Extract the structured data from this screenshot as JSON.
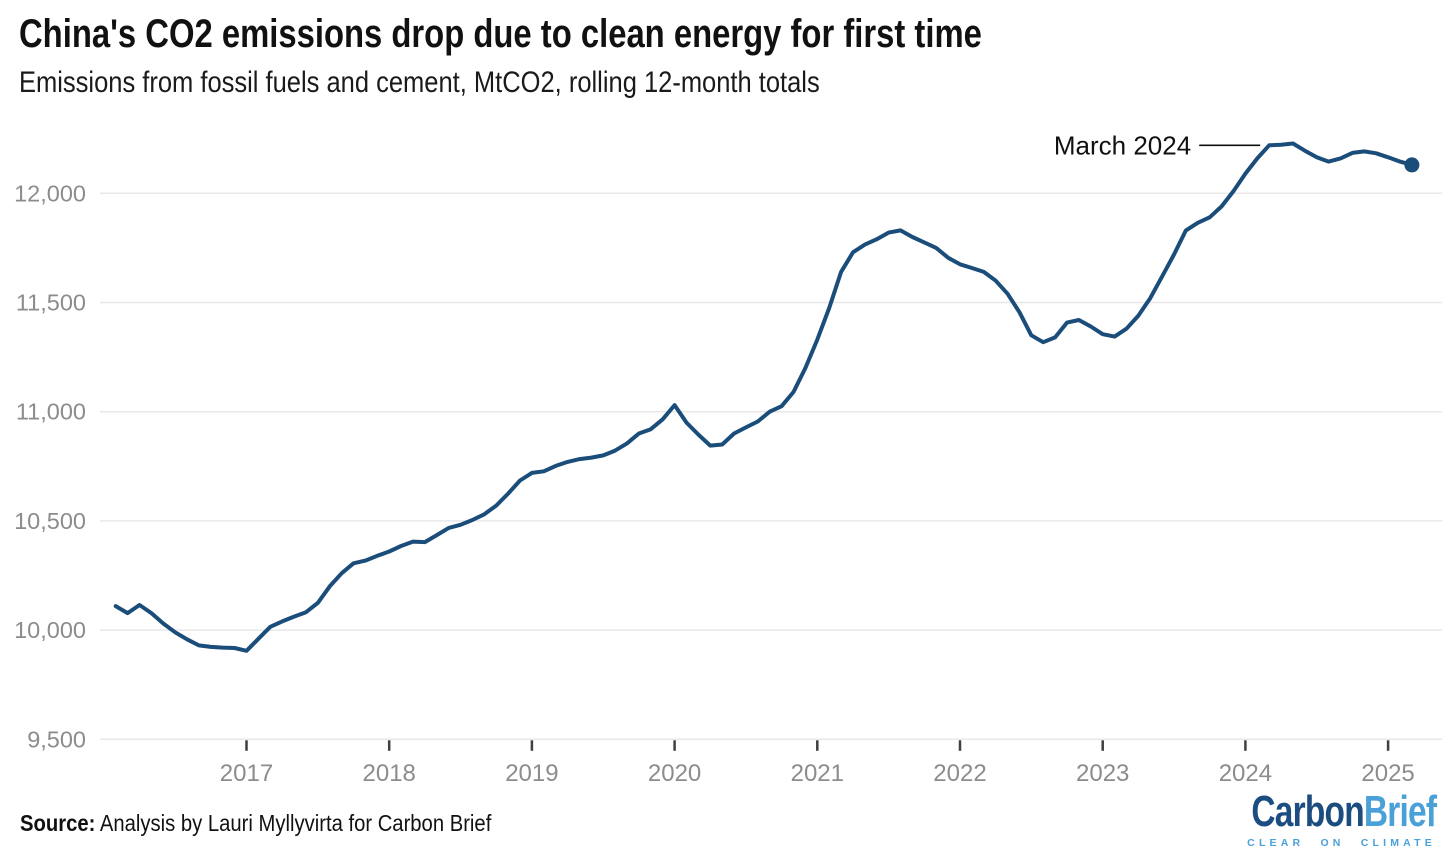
{
  "header": {
    "title": "China's CO2 emissions drop due to clean energy for first time",
    "subtitle": "Emissions from fossil fuels and cement, MtCO2, rolling 12-month totals"
  },
  "footer": {
    "source_label": "Source:",
    "source_text": "Analysis by Lauri Myllyvirta for Carbon Brief",
    "logo": {
      "part1": "Carbon",
      "part2": "Brief",
      "tagline": "CLEAR ON CLIMATE",
      "dark_color": "#1c4d80",
      "light_color": "#4aa0d8"
    }
  },
  "chart_data": {
    "type": "line",
    "title": "China's CO2 emissions drop due to clean energy for first time",
    "subtitle": "Emissions from fossil fuels and cement, MtCO2, rolling 12-month totals",
    "xlabel": "",
    "ylabel": "MtCO2, rolling 12-month totals",
    "grid": "horizontal",
    "legend": "none",
    "ylim": [
      9500,
      12300
    ],
    "xlim": [
      2016.0,
      2025.45
    ],
    "x_ticks": [
      2017,
      2018,
      2019,
      2020,
      2021,
      2022,
      2023,
      2024,
      2025
    ],
    "y_ticks": [
      {
        "value": 12000,
        "label": "12,000"
      },
      {
        "value": 11500,
        "label": "11,500"
      },
      {
        "value": 11000,
        "label": "11,000"
      },
      {
        "value": 10500,
        "label": "10,500"
      },
      {
        "value": 10000,
        "label": "10,000"
      },
      {
        "value": 9500,
        "label": "9,500"
      }
    ],
    "annotation": {
      "label": "March 2024",
      "month": "2024-03"
    },
    "endpoint_dot": true,
    "series": [
      {
        "name": "China CO2 emissions from fossil fuels and cement (MtCO2, rolling 12-month totals)",
        "frequency": "monthly",
        "start_month": "2016-02",
        "end_month": "2025-03",
        "values": [
          10110,
          10078,
          10115,
          10078,
          10030,
          9990,
          9958,
          9930,
          9923,
          9920,
          9918,
          9905,
          9960,
          10015,
          10040,
          10062,
          10082,
          10125,
          10200,
          10260,
          10306,
          10318,
          10340,
          10360,
          10385,
          10405,
          10403,
          10435,
          10468,
          10482,
          10504,
          10530,
          10570,
          10625,
          10685,
          10720,
          10727,
          10752,
          10770,
          10783,
          10790,
          10800,
          10822,
          10855,
          10900,
          10920,
          10965,
          11030,
          10950,
          10895,
          10845,
          10850,
          10900,
          10928,
          10955,
          11000,
          11025,
          11090,
          11200,
          11330,
          11475,
          11640,
          11730,
          11765,
          11790,
          11820,
          11830,
          11800,
          11775,
          11750,
          11705,
          11675,
          11658,
          11640,
          11600,
          11540,
          11455,
          11350,
          11318,
          11340,
          11408,
          11420,
          11390,
          11355,
          11344,
          11380,
          11440,
          11520,
          11620,
          11720,
          11830,
          11865,
          11890,
          11940,
          12010,
          12090,
          12160,
          12220,
          12222,
          12228,
          12195,
          12165,
          12145,
          12160,
          12185,
          12192,
          12183,
          12165,
          12145,
          12130
        ]
      }
    ],
    "colors": {
      "line": "#1a4d7a",
      "grid": "#e8e8e8",
      "axis_tick": "#3f3f3f",
      "tick_label": "#8c8c8c",
      "annotation": "#111111"
    }
  }
}
